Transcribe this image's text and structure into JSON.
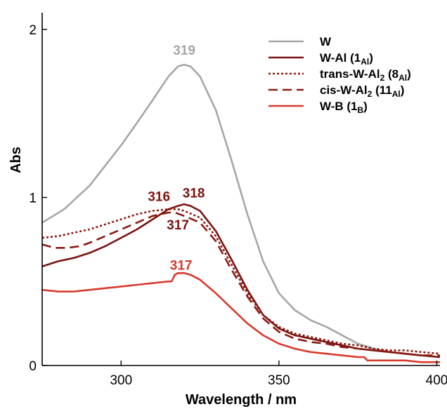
{
  "chart_data": {
    "type": "line",
    "title": "",
    "xlabel": "Wavelength / nm",
    "ylabel": "Abs",
    "xlim": [
      275,
      401
    ],
    "ylim": [
      0,
      2.1
    ],
    "xticks": [
      300,
      350,
      400
    ],
    "yticks": [
      0,
      1,
      2
    ],
    "grid": false,
    "legend_position": "top-right",
    "series": [
      {
        "name": "W",
        "legend_main": "W",
        "legend_sub": "",
        "legend_tail": "",
        "legend_sup2": "",
        "color": "#a6a6a6",
        "dash": "",
        "x": [
          275,
          282,
          290,
          300,
          306,
          310,
          315,
          318,
          320,
          322,
          325,
          330,
          335,
          340,
          345,
          350,
          355,
          360,
          365,
          370,
          375,
          380,
          385,
          390,
          395,
          401
        ],
        "y": [
          0.85,
          0.93,
          1.07,
          1.31,
          1.47,
          1.58,
          1.72,
          1.78,
          1.79,
          1.78,
          1.72,
          1.52,
          1.22,
          0.9,
          0.62,
          0.43,
          0.33,
          0.27,
          0.23,
          0.18,
          0.13,
          0.1,
          0.08,
          0.07,
          0.06,
          0.05
        ]
      },
      {
        "name": "W-Al (1Al)",
        "legend_main": "W-Al (1",
        "legend_sub": "Al",
        "legend_tail": ")",
        "legend_sup2": "",
        "color": "#7a1410",
        "dash": "",
        "x": [
          275,
          280,
          285,
          290,
          295,
          300,
          305,
          310,
          315,
          318,
          320,
          322,
          325,
          330,
          335,
          340,
          345,
          350,
          355,
          360,
          365,
          370,
          375,
          380,
          385,
          390,
          395,
          401
        ],
        "y": [
          0.59,
          0.62,
          0.64,
          0.67,
          0.71,
          0.76,
          0.81,
          0.87,
          0.93,
          0.95,
          0.96,
          0.95,
          0.92,
          0.8,
          0.63,
          0.45,
          0.3,
          0.22,
          0.18,
          0.16,
          0.14,
          0.12,
          0.1,
          0.09,
          0.08,
          0.07,
          0.06,
          0.05
        ]
      },
      {
        "name": "trans-W-Al2 (8Al)",
        "legend_main": "trans-W-Al",
        "legend_sub": "2",
        "legend_tail": " (8",
        "legend_sup2": "Al",
        "color": "#8b1a12",
        "dash": "3,3",
        "x": [
          275,
          280,
          285,
          290,
          295,
          300,
          305,
          310,
          315,
          318,
          320,
          325,
          330,
          335,
          340,
          345,
          350,
          355,
          360,
          365,
          370,
          375,
          380,
          385,
          390,
          395,
          401
        ],
        "y": [
          0.76,
          0.77,
          0.79,
          0.81,
          0.84,
          0.87,
          0.9,
          0.92,
          0.93,
          0.93,
          0.92,
          0.88,
          0.77,
          0.6,
          0.43,
          0.3,
          0.23,
          0.19,
          0.17,
          0.15,
          0.13,
          0.12,
          0.1,
          0.09,
          0.09,
          0.08,
          0.07
        ]
      },
      {
        "name": "cis-W-Al2 (11Al)",
        "legend_main": "cis-W-Al",
        "legend_sub": "2",
        "legend_tail": " (11",
        "legend_sup2": "Al",
        "color": "#8b1a12",
        "dash": "13,7",
        "x": [
          275,
          279,
          283,
          287,
          290,
          295,
          300,
          305,
          310,
          315,
          317,
          320,
          325,
          330,
          335,
          340,
          345,
          350,
          355,
          360,
          365,
          370,
          375,
          380,
          385,
          390,
          395,
          401
        ],
        "y": [
          0.72,
          0.7,
          0.7,
          0.71,
          0.73,
          0.77,
          0.81,
          0.85,
          0.89,
          0.91,
          0.91,
          0.89,
          0.85,
          0.74,
          0.57,
          0.41,
          0.28,
          0.2,
          0.16,
          0.14,
          0.13,
          0.11,
          0.1,
          0.09,
          0.08,
          0.07,
          0.06,
          0.06
        ]
      },
      {
        "name": "W-B (1B)",
        "legend_main": "W-B (1",
        "legend_sub": "B",
        "legend_tail": ")",
        "legend_sup2": "",
        "color": "#d73a2c",
        "dash": "",
        "x": [
          275,
          280,
          285,
          290,
          295,
          300,
          305,
          310,
          315,
          316,
          317,
          318,
          320,
          322,
          325,
          330,
          335,
          340,
          345,
          350,
          355,
          360,
          365,
          370,
          375,
          377,
          378,
          380,
          385,
          390,
          395,
          401
        ],
        "y": [
          0.45,
          0.44,
          0.44,
          0.45,
          0.46,
          0.47,
          0.48,
          0.49,
          0.5,
          0.5,
          0.54,
          0.55,
          0.55,
          0.54,
          0.51,
          0.43,
          0.34,
          0.25,
          0.18,
          0.13,
          0.1,
          0.08,
          0.07,
          0.06,
          0.05,
          0.05,
          0.03,
          0.03,
          0.03,
          0.03,
          0.02,
          0.02
        ]
      }
    ],
    "annotations": [
      {
        "text": "319",
        "x": 320,
        "y": 1.85,
        "color": "#a6a6a6"
      },
      {
        "text": "316",
        "x": 312,
        "y": 0.98,
        "color": "#7a1410"
      },
      {
        "text": "318",
        "x": 323,
        "y": 1.0,
        "color": "#7a1410"
      },
      {
        "text": "317",
        "x": 318,
        "y": 0.81,
        "color": "#7a1410"
      },
      {
        "text": "317",
        "x": 319,
        "y": 0.57,
        "color": "#d73a2c"
      }
    ]
  }
}
